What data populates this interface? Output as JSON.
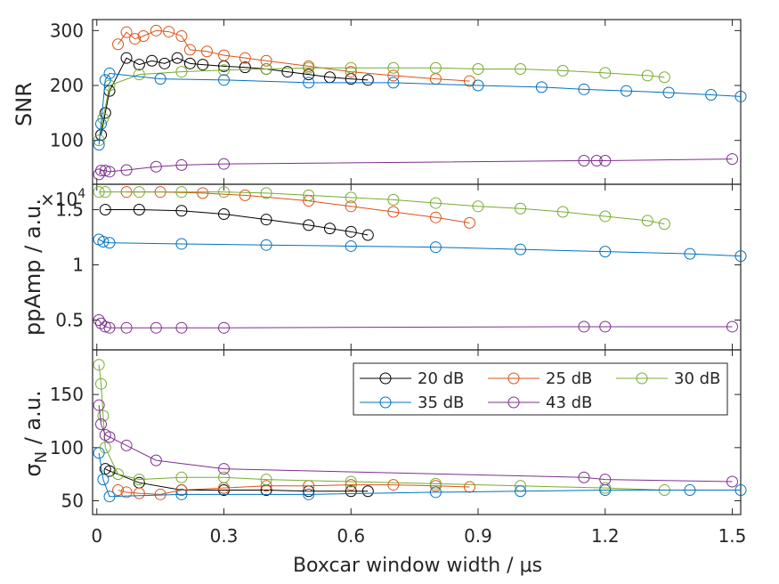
{
  "chart_data": [
    {
      "type": "line",
      "ylabel": "SNR",
      "xlim": [
        -0.01,
        1.52
      ],
      "ylim": [
        20,
        320
      ],
      "yticks": [
        100,
        200,
        300
      ],
      "series": [
        {
          "name": "20 dB",
          "x": [
            0.01,
            0.02,
            0.03,
            0.07,
            0.1,
            0.13,
            0.16,
            0.19,
            0.22,
            0.25,
            0.3,
            0.35,
            0.4,
            0.45,
            0.5,
            0.55,
            0.6,
            0.64
          ],
          "y": [
            110,
            150,
            190,
            250,
            238,
            245,
            240,
            250,
            240,
            238,
            235,
            233,
            230,
            225,
            220,
            215,
            212,
            210
          ]
        },
        {
          "name": "25 dB",
          "x": [
            0.05,
            0.07,
            0.09,
            0.11,
            0.14,
            0.17,
            0.2,
            0.22,
            0.26,
            0.3,
            0.35,
            0.4,
            0.5,
            0.6,
            0.7,
            0.8,
            0.88
          ],
          "y": [
            275,
            297,
            285,
            290,
            300,
            298,
            290,
            265,
            262,
            255,
            250,
            245,
            235,
            225,
            218,
            212,
            208
          ]
        },
        {
          "name": "30 dB",
          "x": [
            0.005,
            0.015,
            0.03,
            0.1,
            0.2,
            0.3,
            0.4,
            0.5,
            0.6,
            0.7,
            0.8,
            0.9,
            1.0,
            1.1,
            1.2,
            1.3,
            1.34
          ],
          "y": [
            100,
            140,
            200,
            220,
            225,
            228,
            230,
            232,
            232,
            232,
            232,
            230,
            230,
            227,
            223,
            218,
            215
          ]
        },
        {
          "name": "35 dB",
          "x": [
            0.005,
            0.01,
            0.02,
            0.03,
            0.15,
            0.3,
            0.5,
            0.7,
            0.9,
            1.05,
            1.15,
            1.25,
            1.35,
            1.45,
            1.52
          ],
          "y": [
            92,
            130,
            210,
            222,
            212,
            210,
            205,
            205,
            200,
            197,
            193,
            190,
            187,
            183,
            180
          ]
        },
        {
          "name": "43 dB",
          "x": [
            0.005,
            0.01,
            0.02,
            0.03,
            0.07,
            0.14,
            0.2,
            0.3,
            1.15,
            1.18,
            1.2,
            1.5
          ],
          "y": [
            38,
            45,
            45,
            43,
            46,
            52,
            55,
            57,
            63,
            63,
            63,
            66
          ]
        }
      ]
    },
    {
      "type": "line",
      "ylabel": "ppAmp / a.u.",
      "exponent_label": "×10",
      "exponent_value": "4",
      "xlim": [
        -0.01,
        1.52
      ],
      "ylim": [
        0.23,
        1.73
      ],
      "yticks": [
        0.5,
        1,
        1.5
      ],
      "ytick_labels": [
        "0.5",
        "1",
        "1.5"
      ],
      "series": [
        {
          "name": "20 dB",
          "x": [
            0.02,
            0.1,
            0.2,
            0.3,
            0.4,
            0.5,
            0.55,
            0.6,
            0.64
          ],
          "y": [
            1.5,
            1.5,
            1.49,
            1.46,
            1.41,
            1.36,
            1.33,
            1.3,
            1.27
          ]
        },
        {
          "name": "25 dB",
          "x": [
            0.07,
            0.15,
            0.25,
            0.35,
            0.5,
            0.6,
            0.7,
            0.8,
            0.88
          ],
          "y": [
            1.66,
            1.66,
            1.65,
            1.63,
            1.58,
            1.53,
            1.48,
            1.43,
            1.38
          ]
        },
        {
          "name": "30 dB",
          "x": [
            0.005,
            0.02,
            0.1,
            0.2,
            0.3,
            0.4,
            0.5,
            0.6,
            0.7,
            0.8,
            0.9,
            1.0,
            1.1,
            1.2,
            1.3,
            1.34
          ],
          "y": [
            1.66,
            1.66,
            1.66,
            1.66,
            1.66,
            1.65,
            1.63,
            1.61,
            1.59,
            1.56,
            1.53,
            1.51,
            1.48,
            1.44,
            1.4,
            1.37
          ]
        },
        {
          "name": "35 dB",
          "x": [
            0.005,
            0.015,
            0.03,
            0.2,
            0.4,
            0.6,
            0.8,
            1.0,
            1.2,
            1.4,
            1.52
          ],
          "y": [
            1.23,
            1.21,
            1.2,
            1.19,
            1.18,
            1.17,
            1.16,
            1.14,
            1.12,
            1.1,
            1.08
          ]
        },
        {
          "name": "43 dB",
          "x": [
            0.005,
            0.01,
            0.02,
            0.03,
            0.07,
            0.14,
            0.2,
            0.3,
            1.15,
            1.2,
            1.5
          ],
          "y": [
            0.5,
            0.47,
            0.44,
            0.43,
            0.43,
            0.43,
            0.43,
            0.43,
            0.44,
            0.44,
            0.44
          ]
        }
      ]
    },
    {
      "type": "line",
      "ylabel": "σ",
      "ylabel_subscript": "N",
      "ylabel_suffix": " / a.u.",
      "xlabel": "Boxcar window width / μs",
      "xlim": [
        -0.01,
        1.52
      ],
      "xticks": [
        0,
        0.3,
        0.6,
        0.9,
        1.2,
        1.5
      ],
      "xtick_labels": [
        "0",
        "0.3",
        "0.6",
        "0.9",
        "1.2",
        "1.5"
      ],
      "ylim": [
        37,
        192
      ],
      "yticks": [
        50,
        100,
        150
      ],
      "legend": "top-right",
      "series": [
        {
          "name": "20 dB",
          "x": [
            0.02,
            0.03,
            0.1,
            0.2,
            0.3,
            0.4,
            0.5,
            0.6,
            0.64
          ],
          "y": [
            80,
            78,
            67,
            60,
            60,
            60,
            59,
            59,
            59
          ]
        },
        {
          "name": "25 dB",
          "x": [
            0.05,
            0.07,
            0.1,
            0.15,
            0.2,
            0.3,
            0.4,
            0.5,
            0.6,
            0.7,
            0.8,
            0.88
          ],
          "y": [
            60,
            58,
            57,
            56,
            60,
            62,
            64,
            64,
            65,
            65,
            64,
            63
          ]
        },
        {
          "name": "30 dB",
          "x": [
            0.005,
            0.01,
            0.015,
            0.02,
            0.05,
            0.1,
            0.2,
            0.3,
            0.4,
            0.6,
            0.8,
            1.0,
            1.2,
            1.34
          ],
          "y": [
            178,
            160,
            130,
            100,
            75,
            70,
            72,
            72,
            70,
            68,
            66,
            64,
            62,
            60
          ]
        },
        {
          "name": "35 dB",
          "x": [
            0.005,
            0.015,
            0.03,
            0.2,
            0.5,
            0.8,
            1.0,
            1.2,
            1.4,
            1.52
          ],
          "y": [
            95,
            70,
            54,
            56,
            56,
            58,
            59,
            60,
            60,
            60
          ]
        },
        {
          "name": "43 dB",
          "x": [
            0.005,
            0.01,
            0.02,
            0.03,
            0.07,
            0.14,
            0.3,
            1.15,
            1.2,
            1.5
          ],
          "y": [
            140,
            122,
            112,
            110,
            102,
            88,
            80,
            72,
            70,
            68
          ]
        }
      ]
    }
  ],
  "legend_labels": [
    "20 dB",
    "25 dB",
    "30 dB",
    "35 dB",
    "43 dB"
  ],
  "colors": {
    "20 dB": "#000000",
    "25 dB": "#D95319",
    "30 dB": "#77AC30",
    "35 dB": "#0072BD",
    "43 dB": "#7E2F8E",
    "axis": "#262626"
  }
}
